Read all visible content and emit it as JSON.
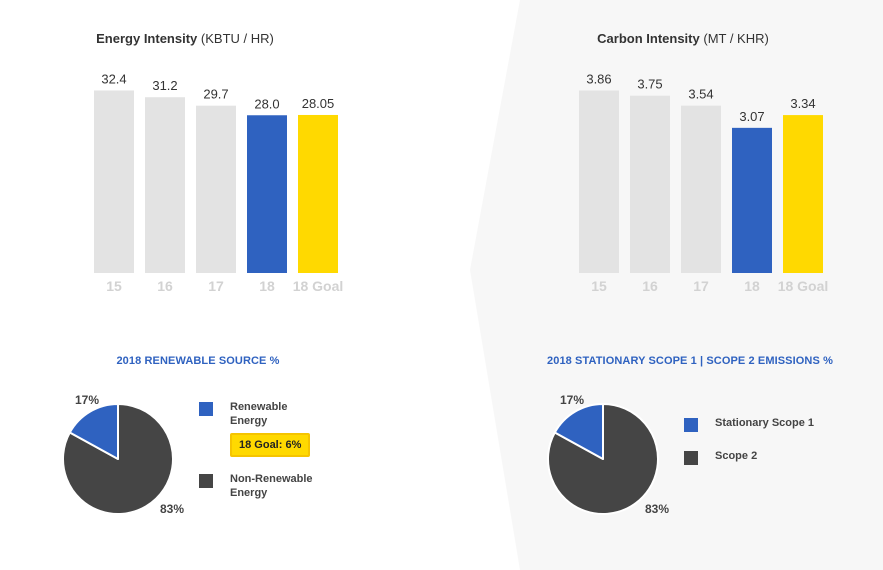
{
  "colors": {
    "past": "#e3e3e3",
    "current": "#2f62c0",
    "goal": "#ffd900",
    "value_text": "#333333",
    "tick_text": "#d2d2d2",
    "pie_dark": "#454545",
    "pie_blue": "#2f62c0",
    "title_blue": "#2f62c0"
  },
  "chart_data": [
    {
      "type": "bar",
      "title": "Energy Intensity",
      "unit": "(KBTU / HR)",
      "categories": [
        "15",
        "16",
        "17",
        "18",
        "18 Goal"
      ],
      "values": [
        32.4,
        31.2,
        29.7,
        28.0,
        28.05
      ],
      "value_labels": [
        "32.4",
        "31.2",
        "29.7",
        "28.0",
        "28.05"
      ],
      "ylim": [
        0,
        35.5
      ]
    },
    {
      "type": "bar",
      "title": "Carbon Intensity",
      "unit": "(MT / KHR)",
      "categories": [
        "15",
        "16",
        "17",
        "18",
        "18 Goal"
      ],
      "values": [
        3.86,
        3.75,
        3.54,
        3.07,
        3.34
      ],
      "value_labels": [
        "3.86",
        "3.75",
        "3.54",
        "3.07",
        "3.34"
      ],
      "ylim": [
        0,
        4.23
      ]
    },
    {
      "type": "pie",
      "title": "2018 RENEWABLE SOURCE %",
      "slices": [
        {
          "name": "Renewable Energy",
          "value": 17,
          "label": "17%"
        },
        {
          "name": "Non-Renewable Energy",
          "value": 83,
          "label": "83%"
        }
      ],
      "goal_badge": "18 Goal: 6%"
    },
    {
      "type": "pie",
      "title": "2018 STATIONARY SCOPE 1 | SCOPE 2 EMISSIONS %",
      "slices": [
        {
          "name": "Stationary Scope 1",
          "value": 17,
          "label": "17%"
        },
        {
          "name": "Scope 2",
          "value": 83,
          "label": "83%"
        }
      ]
    }
  ]
}
